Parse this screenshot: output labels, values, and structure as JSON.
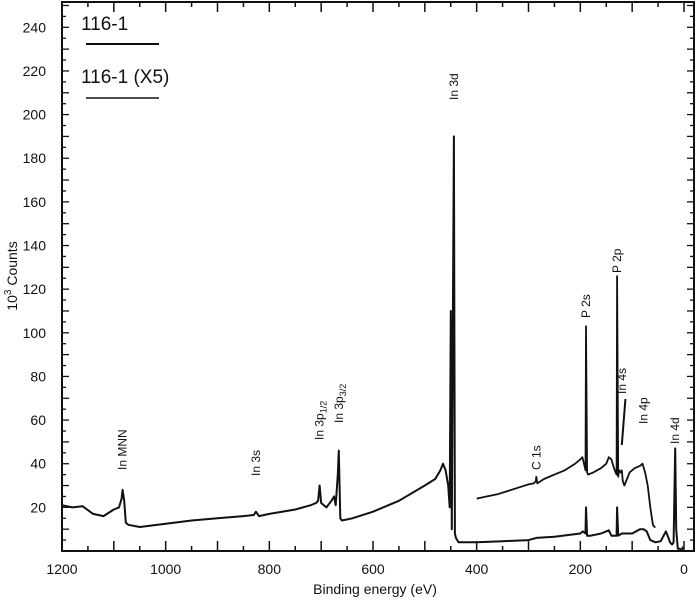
{
  "chart_data": {
    "type": "line",
    "title": "",
    "xlabel": "Binding energy (eV)",
    "ylabel": "10^3 Counts",
    "ylabel_base": "10",
    "ylabel_sup": "3",
    "ylabel_rest": " Counts",
    "xlim": [
      1200,
      0
    ],
    "ylim": [
      0,
      250
    ],
    "x_reversed": true,
    "grid": false,
    "legend_position": "top-left",
    "x_ticks": [
      "1200",
      "1000",
      "800",
      "600",
      "400",
      "200",
      "0"
    ],
    "y_ticks": [
      "20",
      "40",
      "60",
      "80",
      "100",
      "120",
      "140",
      "160",
      "180",
      "200",
      "220",
      "240"
    ],
    "legend": [
      {
        "name": "116-1"
      },
      {
        "name": "116-1 (X5)"
      }
    ],
    "annotations": [
      {
        "label": "In MNN",
        "x": 1083,
        "y": 28
      },
      {
        "label": "In 3s",
        "x": 826,
        "y": 17
      },
      {
        "label": "In 3p1/2",
        "main": "In 3p",
        "sub": "1/2",
        "x": 703,
        "y": 30
      },
      {
        "label": "In 3p3/2",
        "main": "In 3p",
        "sub": "3/2",
        "x": 666,
        "y": 46
      },
      {
        "label": "In 3d",
        "x": 444,
        "y": 190
      },
      {
        "label": "C 1s",
        "x": 285,
        "y": 32
      },
      {
        "label": "P 2s",
        "x": 189,
        "y": 103
      },
      {
        "label": "P 2p",
        "x": 129,
        "y": 126
      },
      {
        "label": "In 4s",
        "x": 120,
        "y": 38
      },
      {
        "label": "In 4p",
        "x": 78,
        "y": 47
      },
      {
        "label": "In 4d",
        "x": 17,
        "y": 47
      }
    ],
    "series": [
      {
        "name": "116-1",
        "x": [
          1200,
          1180,
          1160,
          1140,
          1120,
          1100,
          1090,
          1085,
          1083,
          1080,
          1077,
          1072,
          1050,
          1000,
          950,
          900,
          850,
          830,
          826,
          820,
          800,
          750,
          720,
          710,
          706,
          703,
          700,
          690,
          680,
          675,
          672,
          668,
          666,
          663,
          660,
          640,
          600,
          550,
          500,
          480,
          470,
          465,
          460,
          455,
          452,
          450,
          448,
          446,
          444,
          442,
          440,
          435,
          420,
          400,
          350,
          300,
          285,
          250,
          200,
          195,
          190,
          189,
          187,
          180,
          160,
          145,
          140,
          135,
          130,
          129,
          127,
          120,
          100,
          85,
          78,
          72,
          65,
          55,
          45,
          35,
          30,
          27,
          23,
          20,
          17,
          15,
          12,
          8,
          5,
          2
        ],
        "values": [
          21,
          20,
          20.5,
          17,
          16,
          19,
          20,
          24,
          28,
          23,
          13,
          12,
          11,
          12.5,
          14,
          15,
          16,
          16.5,
          18,
          16,
          17,
          19,
          21,
          22,
          23,
          30,
          22,
          20,
          23,
          25,
          21,
          35,
          46,
          15,
          14,
          15,
          18,
          23,
          30,
          33,
          37,
          40,
          37,
          30,
          20,
          110,
          10,
          100,
          190,
          8,
          6,
          4,
          4,
          4,
          4.5,
          5,
          6,
          6.5,
          8,
          9,
          8,
          20,
          7,
          7,
          8,
          9.5,
          7,
          7,
          7,
          20,
          7,
          8,
          8,
          10,
          10,
          9,
          5,
          4,
          4.5,
          9,
          6,
          4,
          3,
          4,
          47,
          10,
          1,
          1,
          0,
          2
        ]
      },
      {
        "name": "116-1 (X5)",
        "x": [
          400,
          380,
          360,
          340,
          320,
          300,
          290,
          286,
          285,
          283,
          270,
          250,
          230,
          210,
          200,
          196,
          192,
          190,
          189,
          187,
          185,
          175,
          160,
          150,
          145,
          140,
          135,
          132,
          130,
          129,
          127,
          125,
          122,
          120,
          118,
          115,
          110,
          105,
          95,
          85,
          80,
          75,
          70,
          65,
          60,
          57,
          55
        ],
        "values": [
          24,
          25,
          26,
          27.5,
          29,
          30.5,
          31,
          32,
          34,
          31,
          33,
          35,
          37,
          40,
          42,
          43,
          39,
          37,
          103,
          36,
          35,
          36,
          38,
          40,
          43,
          42,
          38,
          36,
          35,
          126,
          34,
          37,
          36,
          37,
          32,
          30,
          33,
          36,
          38,
          39,
          40,
          36,
          30,
          20,
          12,
          11,
          11
        ]
      }
    ]
  }
}
